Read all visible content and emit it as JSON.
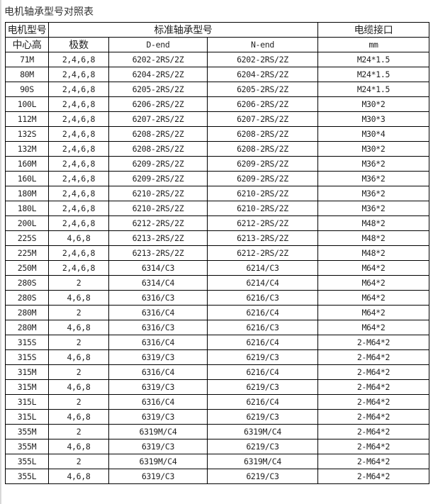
{
  "title": "电机轴承型号对照表",
  "header": {
    "motor_model": "电机型号",
    "standard_bearing": "标准轴承型号",
    "cable_gland": "电缆接口",
    "frame": "中心高",
    "poles": "极数",
    "d_end": "D-end",
    "n_end": "N-end",
    "unit": "mm"
  },
  "rows": [
    [
      "71M",
      "2,4,6,8",
      "6202-2RS/2Z",
      "6202-2RS/2Z",
      "M24*1.5"
    ],
    [
      "80M",
      "2,4,6,8",
      "6204-2RS/2Z",
      "6204-2RS/2Z",
      "M24*1.5"
    ],
    [
      "90S",
      "2,4,6,8",
      "6205-2RS/2Z",
      "6205-2RS/2Z",
      "M24*1.5"
    ],
    [
      "100L",
      "2,4,6,8",
      "6206-2RS/2Z",
      "6206-2RS/2Z",
      "M30*2"
    ],
    [
      "112M",
      "2,4,6,8",
      "6207-2RS/2Z",
      "6207-2RS/2Z",
      "M30*3"
    ],
    [
      "132S",
      "2,4,6,8",
      "6208-2RS/2Z",
      "6208-2RS/2Z",
      "M30*4"
    ],
    [
      "132M",
      "2,4,6,8",
      "6208-2RS/2Z",
      "6208-2RS/2Z",
      "M30*2"
    ],
    [
      "160M",
      "2,4,6,8",
      "6209-2RS/2Z",
      "6209-2RS/2Z",
      "M36*2"
    ],
    [
      "160L",
      "2,4,6,8",
      "6209-2RS/2Z",
      "6209-2RS/2Z",
      "M36*2"
    ],
    [
      "180M",
      "2,4,6,8",
      "6210-2RS/2Z",
      "6210-2RS/2Z",
      "M36*2"
    ],
    [
      "180L",
      "2,4,6,8",
      "6210-2RS/2Z",
      "6210-2RS/2Z",
      "M36*2"
    ],
    [
      "200L",
      "2,4,6,8",
      "6212-2RS/2Z",
      "6212-2RS/2Z",
      "M48*2"
    ],
    [
      "225S",
      "4,6,8",
      "6213-2RS/2Z",
      "6213-2RS/2Z",
      "M48*2"
    ],
    [
      "225M",
      "2,4,6,8",
      "6213-2RS/2Z",
      "6212-2RS/2Z",
      "M48*2"
    ],
    [
      "250M",
      "2,4,6,8",
      "6314/C3",
      "6214/C3",
      "M64*2"
    ],
    [
      "280S",
      "2",
      "6314/C4",
      "6214/C4",
      "M64*2"
    ],
    [
      "280S",
      "4,6,8",
      "6316/C3",
      "6216/C3",
      "M64*2"
    ],
    [
      "280M",
      "2",
      "6316/C4",
      "6216/C4",
      "M64*2"
    ],
    [
      "280M",
      "4,6,8",
      "6316/C3",
      "6216/C3",
      "M64*2"
    ],
    [
      "315S",
      "2",
      "6316/C4",
      "6216/C4",
      "2-M64*2"
    ],
    [
      "315S",
      "4,6,8",
      "6319/C3",
      "6219/C3",
      "2-M64*2"
    ],
    [
      "315M",
      "2",
      "6316/C4",
      "6216/C4",
      "2-M64*2"
    ],
    [
      "315M",
      "4,6,8",
      "6319/C3",
      "6219/C3",
      "2-M64*2"
    ],
    [
      "315L",
      "2",
      "6316/C4",
      "6216/C4",
      "2-M64*2"
    ],
    [
      "315L",
      "4,6,8",
      "6319/C3",
      "6219/C3",
      "2-M64*2"
    ],
    [
      "355M",
      "2",
      "6319M/C4",
      "6319M/C4",
      "2-M64*2"
    ],
    [
      "355M",
      "4,6,8",
      "6319/C3",
      "6219/C3",
      "2-M64*2"
    ],
    [
      "355L",
      "2",
      "6319M/C4",
      "6319M/C4",
      "2-M64*2"
    ],
    [
      "355L",
      "4,6,8",
      "6319/C3",
      "6219/C3",
      "2-M64*2"
    ]
  ]
}
